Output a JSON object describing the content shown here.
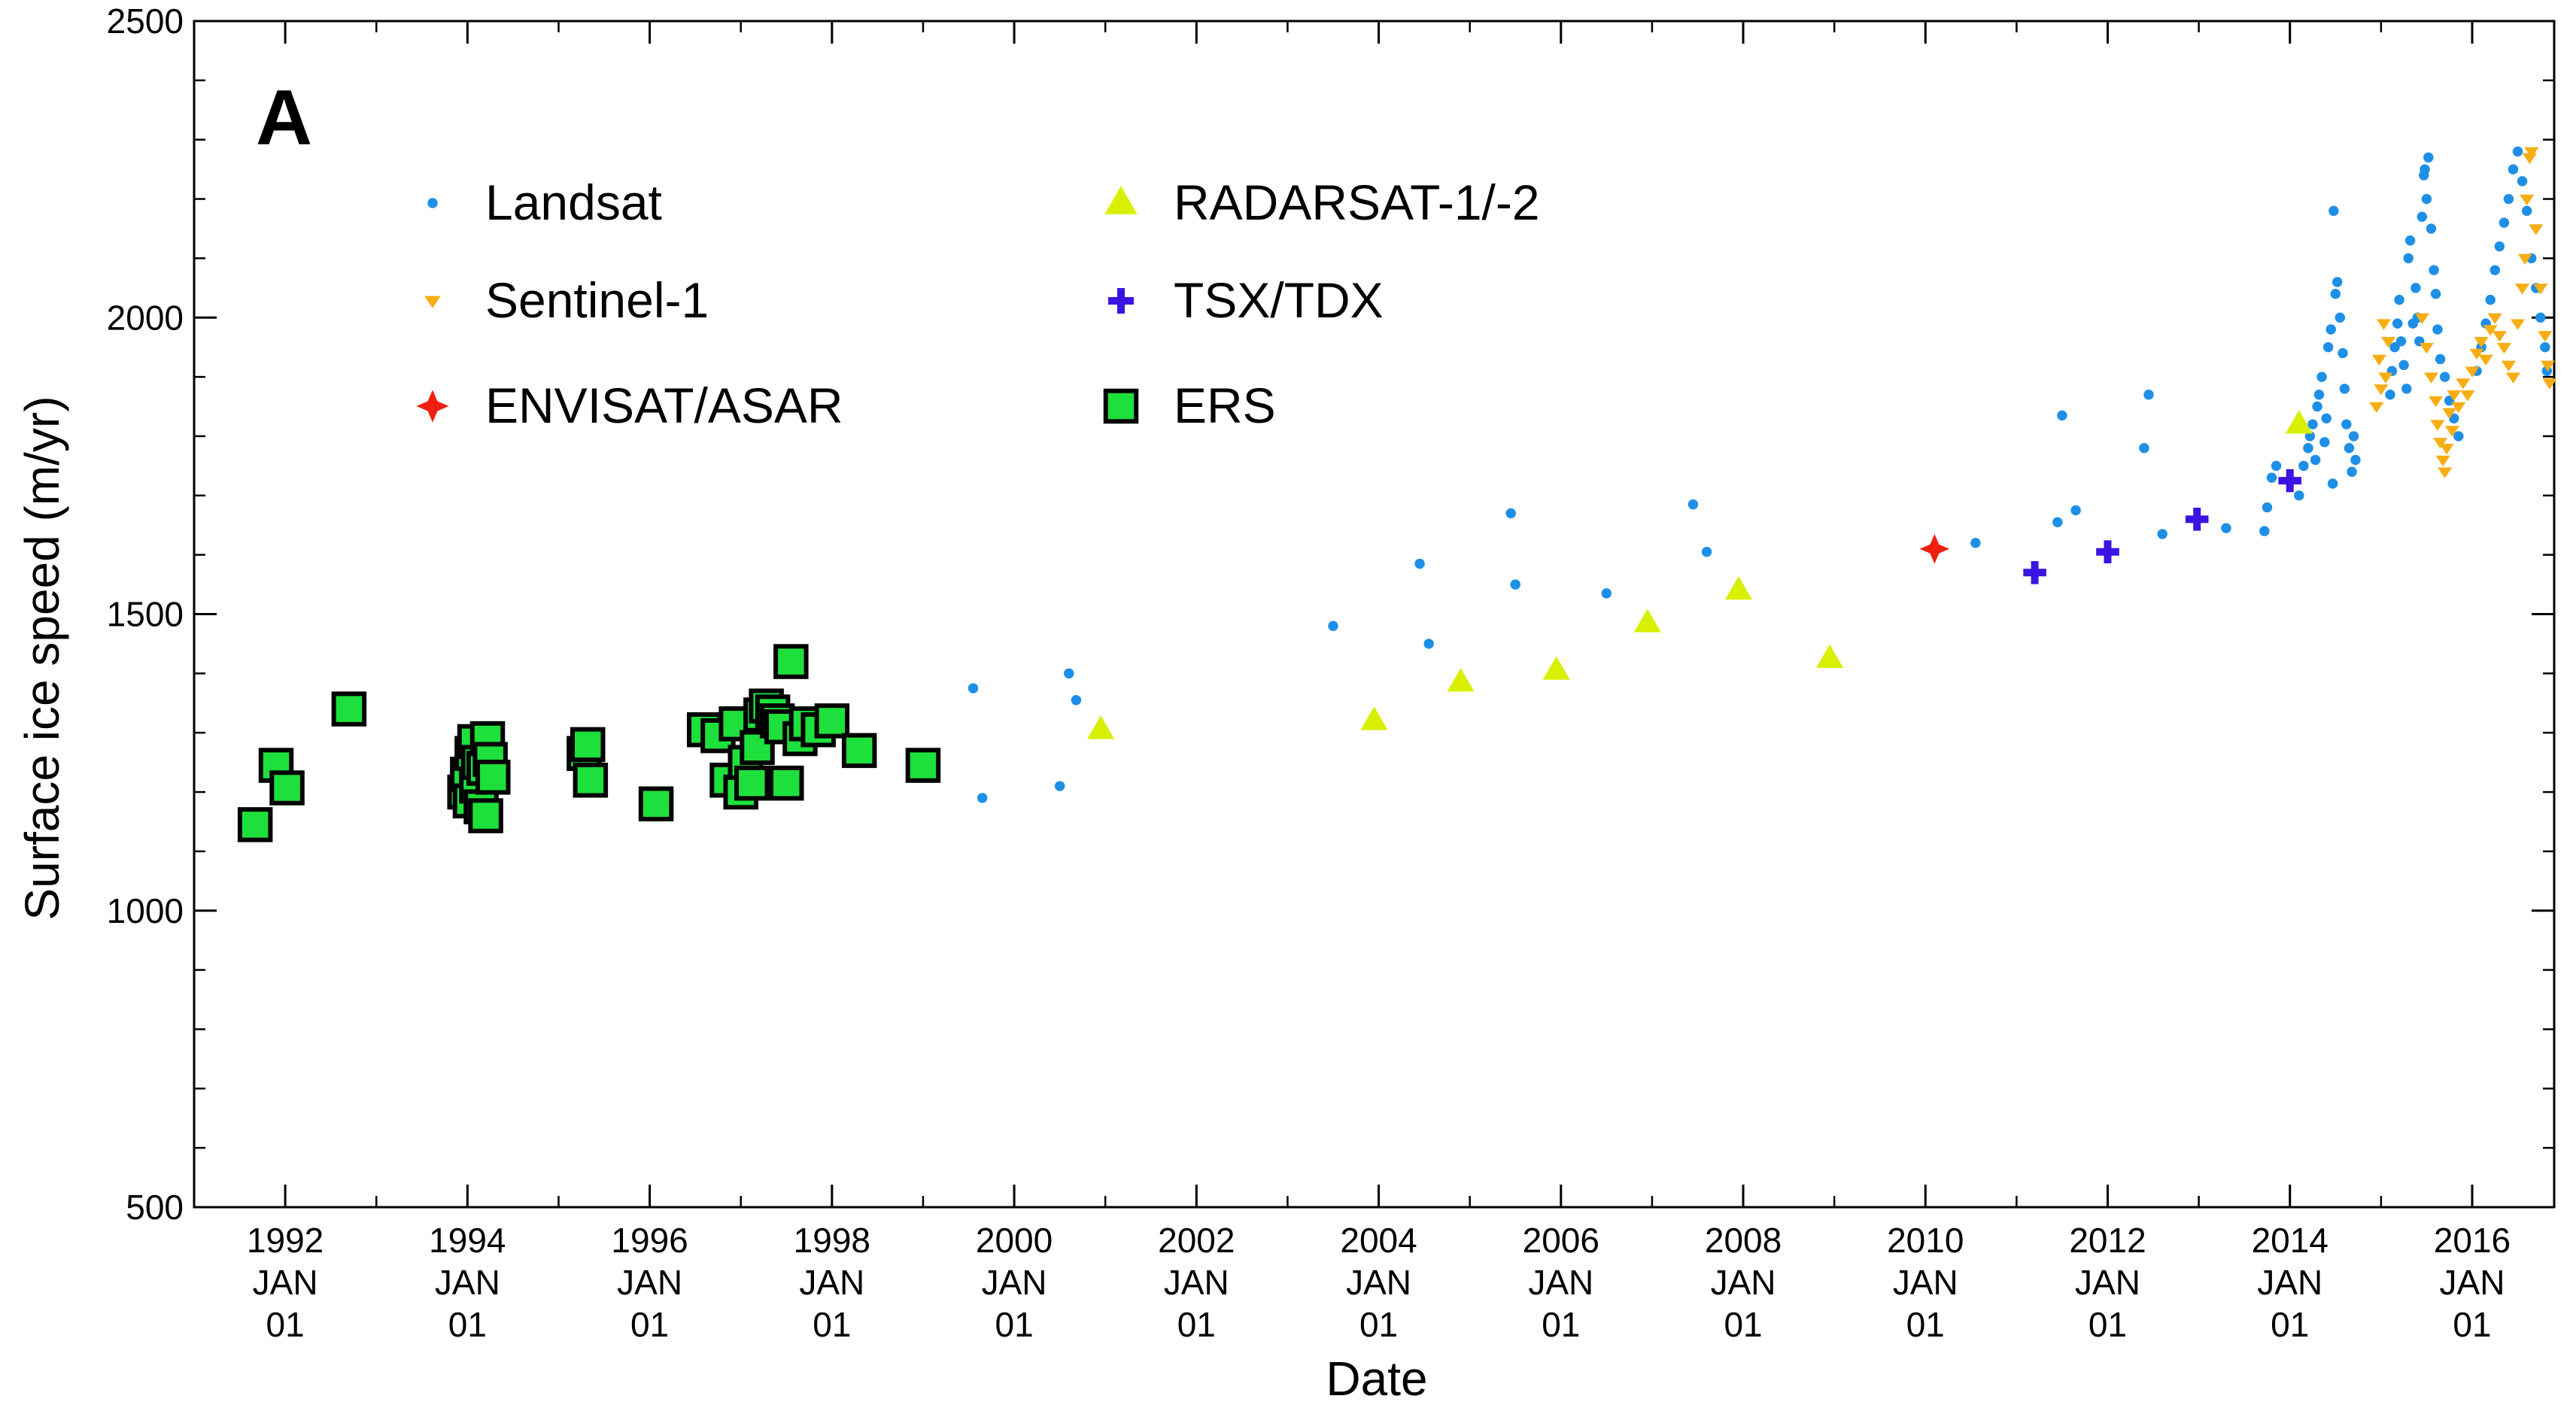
{
  "chart_data": {
    "type": "scatter",
    "panel_label": "A",
    "xlabel": "Date",
    "ylabel": "Surface ice speed (m/yr)",
    "xlim": [
      1991.0,
      2016.9
    ],
    "ylim": [
      500,
      2500
    ],
    "yticks": [
      {
        "value": 500,
        "label": "500"
      },
      {
        "value": 1000,
        "label": "1000"
      },
      {
        "value": 1500,
        "label": "1500"
      },
      {
        "value": 2000,
        "label": "2000"
      },
      {
        "value": 2500,
        "label": "2500"
      }
    ],
    "xticks": [
      {
        "value": 1992,
        "year": "1992",
        "month": "JAN",
        "day": "01"
      },
      {
        "value": 1994,
        "year": "1994",
        "month": "JAN",
        "day": "01"
      },
      {
        "value": 1996,
        "year": "1996",
        "month": "JAN",
        "day": "01"
      },
      {
        "value": 1998,
        "year": "1998",
        "month": "JAN",
        "day": "01"
      },
      {
        "value": 2000,
        "year": "2000",
        "month": "JAN",
        "day": "01"
      },
      {
        "value": 2002,
        "year": "2002",
        "month": "JAN",
        "day": "01"
      },
      {
        "value": 2004,
        "year": "2004",
        "month": "JAN",
        "day": "01"
      },
      {
        "value": 2006,
        "year": "2006",
        "month": "JAN",
        "day": "01"
      },
      {
        "value": 2008,
        "year": "2008",
        "month": "JAN",
        "day": "01"
      },
      {
        "value": 2010,
        "year": "2010",
        "month": "JAN",
        "day": "01"
      },
      {
        "value": 2012,
        "year": "2012",
        "month": "JAN",
        "day": "01"
      },
      {
        "value": 2014,
        "year": "2014",
        "month": "JAN",
        "day": "01"
      },
      {
        "value": 2016,
        "year": "2016",
        "month": "JAN",
        "day": "01"
      }
    ],
    "legend": [
      {
        "name": "Landsat",
        "marker": "circle",
        "color": "#1e8fe6"
      },
      {
        "name": "RADARSAT-1/-2",
        "marker": "triangle-up",
        "color": "#d8f000"
      },
      {
        "name": "Sentinel-1",
        "marker": "triangle-down",
        "color": "#f7ad14"
      },
      {
        "name": "TSX/TDX",
        "marker": "plus",
        "color": "#3a14e0"
      },
      {
        "name": "ENVISAT/ASAR",
        "marker": "star4",
        "color": "#f02010"
      },
      {
        "name": "ERS",
        "marker": "square",
        "color": "#1ee03c"
      }
    ],
    "series": [
      {
        "name": "ERS",
        "marker": "square",
        "color": "#1ee03c",
        "points": [
          [
            1991.67,
            1145
          ],
          [
            1991.9,
            1245
          ],
          [
            1992.02,
            1207
          ],
          [
            1992.7,
            1340
          ],
          [
            1993.97,
            1200
          ],
          [
            1994.0,
            1230
          ],
          [
            1994.03,
            1185
          ],
          [
            1994.05,
            1265
          ],
          [
            1994.08,
            1285
          ],
          [
            1994.1,
            1210
          ],
          [
            1994.12,
            1250
          ],
          [
            1994.15,
            1175
          ],
          [
            1994.18,
            1240
          ],
          [
            1994.2,
            1160
          ],
          [
            1994.22,
            1290
          ],
          [
            1994.25,
            1255
          ],
          [
            1994.28,
            1225
          ],
          [
            1995.28,
            1265
          ],
          [
            1995.32,
            1280
          ],
          [
            1995.35,
            1220
          ],
          [
            1996.07,
            1180
          ],
          [
            1996.6,
            1305
          ],
          [
            1996.75,
            1295
          ],
          [
            1996.85,
            1220
          ],
          [
            1996.95,
            1315
          ],
          [
            1997.0,
            1200
          ],
          [
            1997.05,
            1250
          ],
          [
            1997.12,
            1215
          ],
          [
            1997.18,
            1275
          ],
          [
            1997.22,
            1330
          ],
          [
            1997.28,
            1345
          ],
          [
            1997.35,
            1335
          ],
          [
            1997.4,
            1320
          ],
          [
            1997.45,
            1310
          ],
          [
            1997.5,
            1215
          ],
          [
            1997.55,
            1420
          ],
          [
            1997.65,
            1290
          ],
          [
            1997.72,
            1315
          ],
          [
            1997.85,
            1305
          ],
          [
            1998.0,
            1320
          ],
          [
            1998.3,
            1270
          ],
          [
            1999.0,
            1245
          ]
        ]
      },
      {
        "name": "Landsat",
        "marker": "circle",
        "color": "#1e8fe6",
        "points": [
          [
            1999.55,
            1375
          ],
          [
            1999.65,
            1190
          ],
          [
            2000.5,
            1210
          ],
          [
            2000.6,
            1400
          ],
          [
            2000.68,
            1355
          ],
          [
            2003.5,
            1480
          ],
          [
            2004.45,
            1585
          ],
          [
            2004.55,
            1450
          ],
          [
            2005.45,
            1670
          ],
          [
            2005.5,
            1550
          ],
          [
            2006.5,
            1535
          ],
          [
            2007.45,
            1685
          ],
          [
            2007.6,
            1605
          ],
          [
            2010.55,
            1620
          ],
          [
            2011.45,
            1655
          ],
          [
            2011.5,
            1835
          ],
          [
            2011.65,
            1675
          ],
          [
            2012.4,
            1780
          ],
          [
            2012.45,
            1870
          ],
          [
            2012.6,
            1635
          ],
          [
            2013.3,
            1645
          ],
          [
            2013.72,
            1640
          ],
          [
            2013.75,
            1680
          ],
          [
            2013.8,
            1730
          ],
          [
            2013.85,
            1750
          ],
          [
            2014.1,
            1700
          ],
          [
            2014.15,
            1750
          ],
          [
            2014.2,
            1780
          ],
          [
            2014.22,
            1800
          ],
          [
            2014.25,
            1820
          ],
          [
            2014.28,
            1760
          ],
          [
            2014.3,
            1850
          ],
          [
            2014.32,
            1870
          ],
          [
            2014.35,
            1900
          ],
          [
            2014.38,
            1790
          ],
          [
            2014.4,
            1830
          ],
          [
            2014.42,
            1950
          ],
          [
            2014.45,
            1980
          ],
          [
            2014.47,
            1720
          ],
          [
            2014.48,
            2180
          ],
          [
            2014.5,
            2040
          ],
          [
            2014.52,
            2060
          ],
          [
            2014.55,
            2000
          ],
          [
            2014.58,
            1940
          ],
          [
            2014.6,
            1880
          ],
          [
            2014.62,
            1820
          ],
          [
            2014.65,
            1780
          ],
          [
            2014.68,
            1740
          ],
          [
            2014.7,
            1800
          ],
          [
            2014.72,
            1760
          ],
          [
            2015.1,
            1870
          ],
          [
            2015.12,
            1910
          ],
          [
            2015.15,
            1950
          ],
          [
            2015.18,
            1990
          ],
          [
            2015.2,
            2030
          ],
          [
            2015.22,
            1960
          ],
          [
            2015.25,
            1920
          ],
          [
            2015.28,
            1880
          ],
          [
            2015.3,
            2100
          ],
          [
            2015.32,
            2130
          ],
          [
            2015.35,
            1990
          ],
          [
            2015.38,
            2050
          ],
          [
            2015.4,
            2000
          ],
          [
            2015.42,
            1960
          ],
          [
            2015.45,
            2170
          ],
          [
            2015.47,
            2240
          ],
          [
            2015.48,
            2250
          ],
          [
            2015.5,
            2200
          ],
          [
            2015.52,
            2270
          ],
          [
            2015.55,
            2150
          ],
          [
            2015.58,
            2080
          ],
          [
            2015.6,
            2040
          ],
          [
            2015.62,
            1980
          ],
          [
            2015.65,
            1930
          ],
          [
            2015.7,
            1900
          ],
          [
            2015.75,
            1860
          ],
          [
            2015.8,
            1830
          ],
          [
            2015.85,
            1800
          ],
          [
            2016.05,
            1910
          ],
          [
            2016.1,
            1950
          ],
          [
            2016.15,
            1990
          ],
          [
            2016.2,
            2030
          ],
          [
            2016.25,
            2080
          ],
          [
            2016.3,
            2120
          ],
          [
            2016.35,
            2160
          ],
          [
            2016.4,
            2200
          ],
          [
            2016.45,
            2250
          ],
          [
            2016.5,
            2280
          ],
          [
            2016.55,
            2230
          ],
          [
            2016.6,
            2180
          ],
          [
            2016.65,
            2100
          ],
          [
            2016.7,
            2050
          ],
          [
            2016.75,
            2000
          ],
          [
            2016.8,
            1950
          ],
          [
            2016.82,
            1910
          ]
        ]
      },
      {
        "name": "RADARSAT-1/-2",
        "marker": "triangle-up",
        "color": "#d8f000",
        "points": [
          [
            2000.95,
            1305
          ],
          [
            2003.95,
            1320
          ],
          [
            2004.9,
            1385
          ],
          [
            2005.95,
            1405
          ],
          [
            2006.95,
            1485
          ],
          [
            2007.95,
            1540
          ],
          [
            2008.95,
            1425
          ],
          [
            2014.1,
            1820
          ]
        ]
      },
      {
        "name": "Sentinel-1",
        "marker": "triangle-down",
        "color": "#f7ad14",
        "points": [
          [
            2014.95,
            1850
          ],
          [
            2014.98,
            1930
          ],
          [
            2015.0,
            1880
          ],
          [
            2015.03,
            1990
          ],
          [
            2015.05,
            1900
          ],
          [
            2015.08,
            1960
          ],
          [
            2015.45,
            2000
          ],
          [
            2015.5,
            1950
          ],
          [
            2015.55,
            1900
          ],
          [
            2015.6,
            1860
          ],
          [
            2015.62,
            1820
          ],
          [
            2015.65,
            1790
          ],
          [
            2015.68,
            1760
          ],
          [
            2015.7,
            1740
          ],
          [
            2015.72,
            1780
          ],
          [
            2015.75,
            1840
          ],
          [
            2015.78,
            1810
          ],
          [
            2015.8,
            1870
          ],
          [
            2015.85,
            1850
          ],
          [
            2015.9,
            1890
          ],
          [
            2015.95,
            1870
          ],
          [
            2016.0,
            1910
          ],
          [
            2016.05,
            1940
          ],
          [
            2016.1,
            1960
          ],
          [
            2016.15,
            1930
          ],
          [
            2016.2,
            1980
          ],
          [
            2016.25,
            2000
          ],
          [
            2016.3,
            1970
          ],
          [
            2016.35,
            1950
          ],
          [
            2016.4,
            1920
          ],
          [
            2016.45,
            1900
          ],
          [
            2016.5,
            1990
          ],
          [
            2016.55,
            2050
          ],
          [
            2016.58,
            2100
          ],
          [
            2016.6,
            2200
          ],
          [
            2016.63,
            2270
          ],
          [
            2016.65,
            2280
          ],
          [
            2016.7,
            2150
          ],
          [
            2016.75,
            2050
          ],
          [
            2016.8,
            1970
          ],
          [
            2016.83,
            1920
          ],
          [
            2016.85,
            1890
          ]
        ]
      },
      {
        "name": "TSX/TDX",
        "marker": "plus",
        "color": "#3a14e0",
        "points": [
          [
            2011.2,
            1570
          ],
          [
            2012.0,
            1605
          ],
          [
            2012.98,
            1660
          ],
          [
            2014.0,
            1725
          ]
        ]
      },
      {
        "name": "ENVISAT/ASAR",
        "marker": "star4",
        "color": "#f02010",
        "points": [
          [
            2010.1,
            1610
          ]
        ]
      }
    ]
  }
}
